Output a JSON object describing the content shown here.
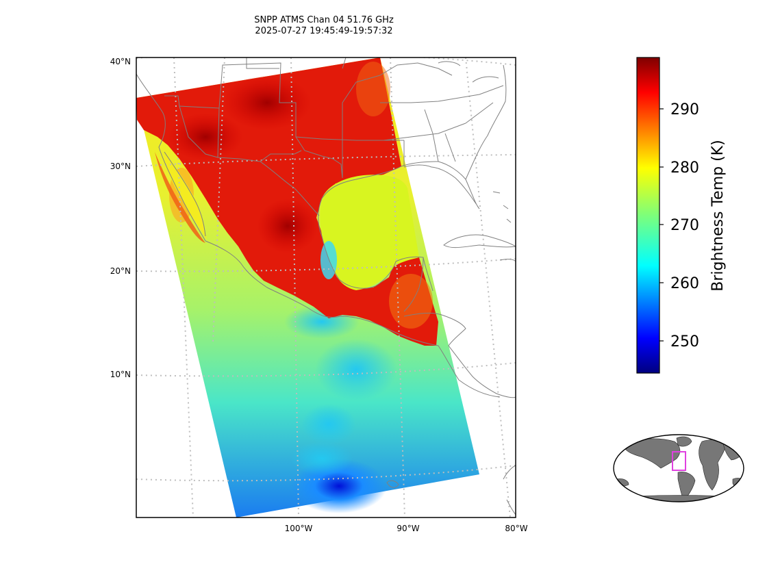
{
  "title": {
    "line1": "SNPP ATMS Chan 04 51.76 GHz",
    "line2": "2025-07-27 19:45:49-19:57:32"
  },
  "map": {
    "lat_labels": [
      "40°N",
      "30°N",
      "20°N",
      "10°N"
    ],
    "lon_labels": [
      "100°W",
      "90°W",
      "80°W"
    ],
    "gridlines": "dotted",
    "land_border_color": "#808080",
    "gridline_color": "#bdbdbd"
  },
  "colorbar": {
    "label": "Brightness Temp (K)",
    "ticks": [
      "250",
      "260",
      "270",
      "280",
      "290"
    ],
    "colormap": "jet",
    "range": [
      244.5,
      298.8
    ]
  },
  "inset": {
    "highlight_color": "#e040e0",
    "land_color": "#777777"
  }
}
